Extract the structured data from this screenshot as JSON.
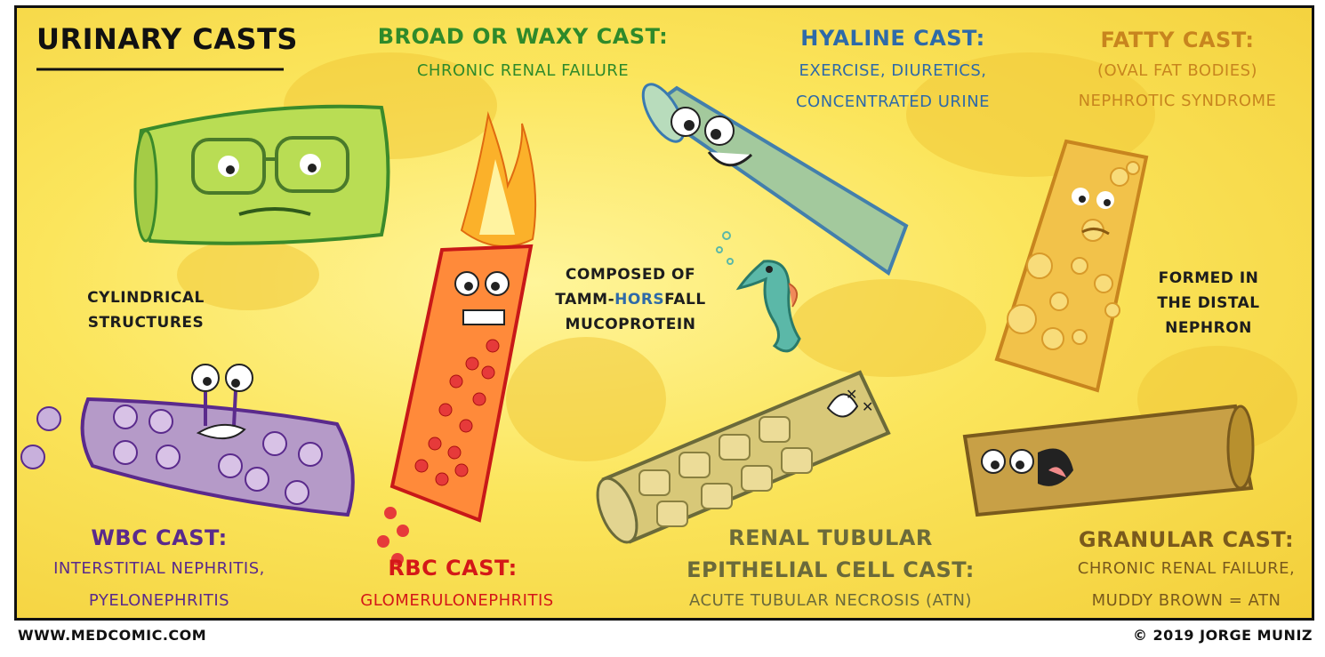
{
  "title": "URINARY CASTS",
  "casts": {
    "broad": {
      "name": "BROAD OR WAXY CAST:",
      "desc": "CHRONIC RENAL FAILURE"
    },
    "hyaline": {
      "name": "HYALINE CAST:",
      "desc1": "EXERCISE, DIURETICS,",
      "desc2": "CONCENTRATED URINE"
    },
    "fatty": {
      "name": "FATTY CAST:",
      "desc1": "(OVAL FAT BODIES)",
      "desc2": "NEPHROTIC SYNDROME"
    },
    "wbc": {
      "name": "WBC CAST:",
      "desc1": "INTERSTITIAL NEPHRITIS,",
      "desc2": "PYELONEPHRITIS"
    },
    "rbc": {
      "name": "RBC CAST:",
      "desc": "GLOMERULONEPHRITIS"
    },
    "renal": {
      "name1": "RENAL TUBULAR",
      "name2": "EPITHELIAL CELL CAST:",
      "desc": "ACUTE TUBULAR NECROSIS (ATN)"
    },
    "granular": {
      "name": "GRANULAR CAST:",
      "desc1": "CHRONIC RENAL FAILURE,",
      "desc2": "MUDDY BROWN = ATN"
    }
  },
  "notes": {
    "cylindrical1": "CYLINDRICAL",
    "cylindrical2": "STRUCTURES",
    "composed1": "COMPOSED OF",
    "composed2_pre": "TAMM-",
    "composed2_horse": "HORS",
    "composed2_post": "FALL",
    "composed3": "MUCOPROTEIN",
    "formed1": "FORMED IN",
    "formed2": "THE DISTAL",
    "formed3": "NEPHRON"
  },
  "footer": {
    "left": "WWW.MEDCOMIC.COM",
    "right": "© 2019 JORGE MUNIZ"
  },
  "colors": {
    "broad": "#2f8a2a",
    "hyaline": "#2e6aa8",
    "fatty": "#c8851e",
    "wbc": "#5a2a8c",
    "rbc": "#d41818",
    "renal": "#6b6a3a",
    "granular": "#7a5a1c",
    "background": "#f8df4a"
  },
  "icons": [
    "waxy-cast-character",
    "hyaline-cast-character",
    "fatty-cast-character",
    "wbc-cast-character",
    "rbc-cast-character-on-fire",
    "renal-tubular-cast-character",
    "granular-cast-character",
    "seahorse-icon"
  ]
}
